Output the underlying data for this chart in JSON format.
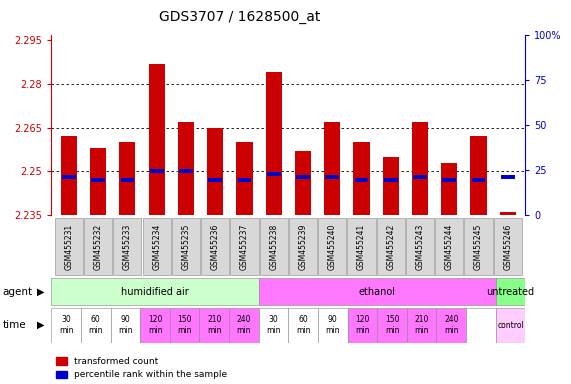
{
  "title": "GDS3707 / 1628500_at",
  "samples": [
    "GSM455231",
    "GSM455232",
    "GSM455233",
    "GSM455234",
    "GSM455235",
    "GSM455236",
    "GSM455237",
    "GSM455238",
    "GSM455239",
    "GSM455240",
    "GSM455241",
    "GSM455242",
    "GSM455243",
    "GSM455244",
    "GSM455245",
    "GSM455246"
  ],
  "red_values": [
    2.262,
    2.258,
    2.26,
    2.287,
    2.267,
    2.265,
    2.26,
    2.284,
    2.257,
    2.267,
    2.26,
    2.255,
    2.267,
    2.253,
    2.262,
    2.236
  ],
  "blue_values": [
    2.248,
    2.247,
    2.247,
    2.25,
    2.25,
    2.247,
    2.247,
    2.249,
    2.248,
    2.248,
    2.247,
    2.247,
    2.248,
    2.247,
    2.247,
    2.248
  ],
  "baseline": 2.235,
  "ylim": [
    2.235,
    2.297
  ],
  "yticks": [
    2.235,
    2.25,
    2.265,
    2.28,
    2.295
  ],
  "right_yticks": [
    0,
    25,
    50,
    75,
    100
  ],
  "bar_color": "#cc0000",
  "blue_color": "#0000cc",
  "agent_groups": [
    {
      "label": "humidified air",
      "start": 0,
      "end": 7,
      "color": "#ccffcc"
    },
    {
      "label": "ethanol",
      "start": 7,
      "end": 15,
      "color": "#ff77ff"
    },
    {
      "label": "untreated",
      "start": 15,
      "end": 16,
      "color": "#88ff88"
    }
  ],
  "time_labels": [
    "30\nmin",
    "60\nmin",
    "90\nmin",
    "120\nmin",
    "150\nmin",
    "210\nmin",
    "240\nmin",
    "30\nmin",
    "60\nmin",
    "90\nmin",
    "120\nmin",
    "150\nmin",
    "210\nmin",
    "240\nmin",
    "",
    "control"
  ],
  "time_colors": [
    "#ffffff",
    "#ffffff",
    "#ffffff",
    "#ff77ff",
    "#ff77ff",
    "#ff77ff",
    "#ff77ff",
    "#ffffff",
    "#ffffff",
    "#ffffff",
    "#ff77ff",
    "#ff77ff",
    "#ff77ff",
    "#ff77ff",
    "#ffffff",
    "#ffccff"
  ],
  "left_axis_color": "#cc0000",
  "right_axis_color": "#0000cc",
  "bar_width": 0.55,
  "title_fontsize": 10,
  "tick_fontsize": 7,
  "sample_fontsize": 5.5,
  "legend_red": "transformed count",
  "legend_blue": "percentile rank within the sample"
}
